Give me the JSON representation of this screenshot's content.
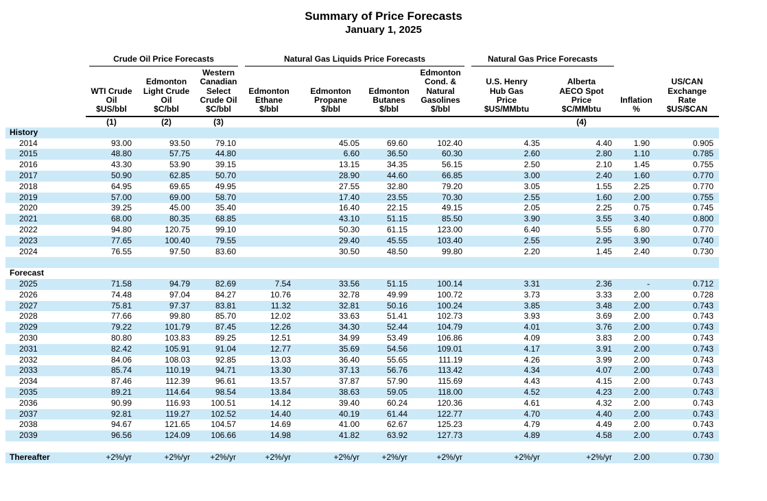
{
  "page": {
    "title": "Summary of Price Forecasts",
    "subtitle": "January 1, 2025"
  },
  "colors": {
    "stripe": "#cce9f8",
    "rule": "#000000",
    "background": "#ffffff"
  },
  "table": {
    "groups": [
      {
        "label": "Crude Oil Price Forecasts",
        "span": 3
      },
      {
        "label": "Natural Gas Liquids Price Forecasts",
        "span": 4
      },
      {
        "label": "Natural Gas Price Forecasts",
        "span": 2
      }
    ],
    "columns": [
      {
        "lines": [],
        "footnote": ""
      },
      {
        "lines": [
          "WTI Crude",
          "Oil",
          "$US/bbl"
        ],
        "footnote": "(1)"
      },
      {
        "lines": [
          "Edmonton",
          "Light Crude",
          "Oil",
          "$C/bbl"
        ],
        "footnote": "(2)"
      },
      {
        "lines": [
          "Western",
          "Canadian",
          "Select",
          "Crude Oil",
          "$C/bbl"
        ],
        "footnote": "(3)"
      },
      {
        "lines": [
          "Edmonton",
          "Ethane",
          "$/bbl"
        ],
        "footnote": ""
      },
      {
        "lines": [
          "Edmonton",
          "Propane",
          "$/bbl"
        ],
        "footnote": ""
      },
      {
        "lines": [
          "Edmonton",
          "Butanes",
          "$/bbl"
        ],
        "footnote": ""
      },
      {
        "lines": [
          "Edmonton",
          "Cond. &",
          "Natural",
          "Gasolines",
          "$/bbl"
        ],
        "footnote": ""
      },
      {
        "lines": [
          "U.S. Henry",
          "Hub Gas",
          "Price",
          "$US/MMbtu"
        ],
        "footnote": ""
      },
      {
        "lines": [
          "Alberta",
          "AECO Spot",
          "Price",
          "$C/MMbtu"
        ],
        "footnote": "(4)"
      },
      {
        "lines": [
          "Inflation",
          "%"
        ],
        "footnote": ""
      },
      {
        "lines": [
          "US/CAN",
          "Exchange",
          "Rate",
          "$US/$CAN"
        ],
        "footnote": ""
      }
    ],
    "sections": [
      {
        "label": "History",
        "rows": [
          {
            "year": "2014",
            "values": [
              "93.00",
              "93.50",
              "79.10",
              "",
              "45.05",
              "69.60",
              "102.40",
              "4.35",
              "4.40",
              "1.90",
              "0.905"
            ]
          },
          {
            "year": "2015",
            "values": [
              "48.80",
              "57.75",
              "44.80",
              "",
              "6.60",
              "36.50",
              "60.30",
              "2.60",
              "2.80",
              "1.10",
              "0.785"
            ]
          },
          {
            "year": "2016",
            "values": [
              "43.30",
              "53.90",
              "39.15",
              "",
              "13.15",
              "34.35",
              "56.15",
              "2.50",
              "2.10",
              "1.45",
              "0.755"
            ]
          },
          {
            "year": "2017",
            "values": [
              "50.90",
              "62.85",
              "50.70",
              "",
              "28.90",
              "44.60",
              "66.85",
              "3.00",
              "2.40",
              "1.60",
              "0.770"
            ]
          },
          {
            "year": "2018",
            "values": [
              "64.95",
              "69.65",
              "49.95",
              "",
              "27.55",
              "32.80",
              "79.20",
              "3.05",
              "1.55",
              "2.25",
              "0.770"
            ]
          },
          {
            "year": "2019",
            "values": [
              "57.00",
              "69.00",
              "58.70",
              "",
              "17.40",
              "23.55",
              "70.30",
              "2.55",
              "1.60",
              "2.00",
              "0.755"
            ]
          },
          {
            "year": "2020",
            "values": [
              "39.25",
              "45.00",
              "35.40",
              "",
              "16.40",
              "22.15",
              "49.15",
              "2.05",
              "2.25",
              "0.75",
              "0.745"
            ]
          },
          {
            "year": "2021",
            "values": [
              "68.00",
              "80.35",
              "68.85",
              "",
              "43.10",
              "51.15",
              "85.50",
              "3.90",
              "3.55",
              "3.40",
              "0.800"
            ]
          },
          {
            "year": "2022",
            "values": [
              "94.80",
              "120.75",
              "99.10",
              "",
              "50.30",
              "61.15",
              "123.00",
              "6.40",
              "5.55",
              "6.80",
              "0.770"
            ]
          },
          {
            "year": "2023",
            "values": [
              "77.65",
              "100.40",
              "79.55",
              "",
              "29.40",
              "45.55",
              "103.40",
              "2.55",
              "2.95",
              "3.90",
              "0.740"
            ]
          },
          {
            "year": "2024",
            "values": [
              "76.55",
              "97.50",
              "83.60",
              "",
              "30.50",
              "48.50",
              "99.80",
              "2.20",
              "1.45",
              "2.40",
              "0.730"
            ]
          }
        ]
      },
      {
        "label": "Forecast",
        "rows": [
          {
            "year": "2025",
            "values": [
              "71.58",
              "94.79",
              "82.69",
              "7.54",
              "33.56",
              "51.15",
              "100.14",
              "3.31",
              "2.36",
              "-",
              "0.712"
            ]
          },
          {
            "year": "2026",
            "values": [
              "74.48",
              "97.04",
              "84.27",
              "10.76",
              "32.78",
              "49.99",
              "100.72",
              "3.73",
              "3.33",
              "2.00",
              "0.728"
            ]
          },
          {
            "year": "2027",
            "values": [
              "75.81",
              "97.37",
              "83.81",
              "11.32",
              "32.81",
              "50.16",
              "100.24",
              "3.85",
              "3.48",
              "2.00",
              "0.743"
            ]
          },
          {
            "year": "2028",
            "values": [
              "77.66",
              "99.80",
              "85.70",
              "12.02",
              "33.63",
              "51.41",
              "102.73",
              "3.93",
              "3.69",
              "2.00",
              "0.743"
            ]
          },
          {
            "year": "2029",
            "values": [
              "79.22",
              "101.79",
              "87.45",
              "12.26",
              "34.30",
              "52.44",
              "104.79",
              "4.01",
              "3.76",
              "2.00",
              "0.743"
            ]
          },
          {
            "year": "2030",
            "values": [
              "80.80",
              "103.83",
              "89.25",
              "12.51",
              "34.99",
              "53.49",
              "106.86",
              "4.09",
              "3.83",
              "2.00",
              "0.743"
            ]
          },
          {
            "year": "2031",
            "values": [
              "82.42",
              "105.91",
              "91.04",
              "12.77",
              "35.69",
              "54.56",
              "109.01",
              "4.17",
              "3.91",
              "2.00",
              "0.743"
            ]
          },
          {
            "year": "2032",
            "values": [
              "84.06",
              "108.03",
              "92.85",
              "13.03",
              "36.40",
              "55.65",
              "111.19",
              "4.26",
              "3.99",
              "2.00",
              "0.743"
            ]
          },
          {
            "year": "2033",
            "values": [
              "85.74",
              "110.19",
              "94.71",
              "13.30",
              "37.13",
              "56.76",
              "113.42",
              "4.34",
              "4.07",
              "2.00",
              "0.743"
            ]
          },
          {
            "year": "2034",
            "values": [
              "87.46",
              "112.39",
              "96.61",
              "13.57",
              "37.87",
              "57.90",
              "115.69",
              "4.43",
              "4.15",
              "2.00",
              "0.743"
            ]
          },
          {
            "year": "2035",
            "values": [
              "89.21",
              "114.64",
              "98.54",
              "13.84",
              "38.63",
              "59.05",
              "118.00",
              "4.52",
              "4.23",
              "2.00",
              "0.743"
            ]
          },
          {
            "year": "2036",
            "values": [
              "90.99",
              "116.93",
              "100.51",
              "14.12",
              "39.40",
              "60.24",
              "120.36",
              "4.61",
              "4.32",
              "2.00",
              "0.743"
            ]
          },
          {
            "year": "2037",
            "values": [
              "92.81",
              "119.27",
              "102.52",
              "14.40",
              "40.19",
              "61.44",
              "122.77",
              "4.70",
              "4.40",
              "2.00",
              "0.743"
            ]
          },
          {
            "year": "2038",
            "values": [
              "94.67",
              "121.65",
              "104.57",
              "14.69",
              "41.00",
              "62.67",
              "125.23",
              "4.79",
              "4.49",
              "2.00",
              "0.743"
            ]
          },
          {
            "year": "2039",
            "values": [
              "96.56",
              "124.09",
              "106.66",
              "14.98",
              "41.82",
              "63.92",
              "127.73",
              "4.89",
              "4.58",
              "2.00",
              "0.743"
            ]
          }
        ]
      }
    ],
    "thereafter": {
      "label": "Thereafter",
      "values": [
        "+2%/yr",
        "+2%/yr",
        "+2%/yr",
        "+2%/yr",
        "+2%/yr",
        "+2%/yr",
        "+2%/yr",
        "+2%/yr",
        "+2%/yr",
        "2.00",
        "0.730"
      ]
    }
  }
}
